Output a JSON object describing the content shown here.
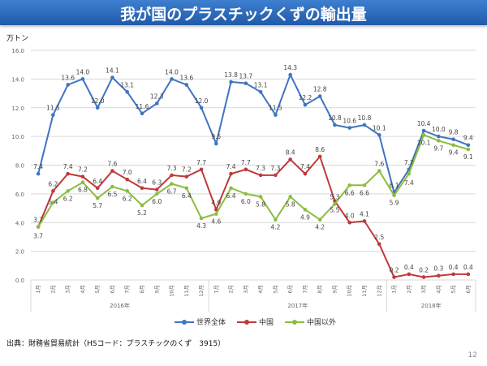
{
  "header": {
    "title": "我が国のプラスチックくずの輸出量"
  },
  "unit_label": "万トン",
  "source": "出典：財務省貿易統計（HSコード：プラスチックのくず　3915）",
  "page_number": "12",
  "chart_data": {
    "type": "line",
    "title": "我が国のプラスチックくずの輸出量",
    "ylabel": "万トン",
    "xlabel": "",
    "ylim": [
      0,
      16
    ],
    "yticks": [
      "0.0",
      "2.0",
      "4.0",
      "6.0",
      "8.0",
      "10.0",
      "12.0",
      "14.0",
      "16.0"
    ],
    "grid": true,
    "legend_position": "bottom",
    "categories": [
      "1月",
      "2月",
      "3月",
      "4月",
      "5月",
      "6月",
      "7月",
      "8月",
      "9月",
      "10月",
      "11月",
      "12月",
      "1月",
      "2月",
      "3月",
      "4月",
      "5月",
      "6月",
      "7月",
      "8月",
      "9月",
      "10月",
      "11月",
      "12月",
      "1月",
      "2月",
      "3月",
      "4月",
      "5月",
      "6月"
    ],
    "year_groups": [
      {
        "label": "2016年",
        "count": 12
      },
      {
        "label": "2017年",
        "count": 12
      },
      {
        "label": "2018年",
        "count": 6
      }
    ],
    "series": [
      {
        "name": "世界全体",
        "color": "#3f74c0",
        "values": [
          7.4,
          11.5,
          13.6,
          14.0,
          12.0,
          14.1,
          13.1,
          11.6,
          12.3,
          14.0,
          13.6,
          12.0,
          9.5,
          13.8,
          13.7,
          13.1,
          11.5,
          14.3,
          12.2,
          12.8,
          10.8,
          10.6,
          10.8,
          10.1,
          6.1,
          7.7,
          10.4,
          10.0,
          9.8,
          9.4
        ]
      },
      {
        "name": "中国",
        "color": "#c0393b",
        "values": [
          3.7,
          6.2,
          7.4,
          7.2,
          6.4,
          7.6,
          7.0,
          6.4,
          6.3,
          7.3,
          7.2,
          7.7,
          4.9,
          7.4,
          7.7,
          7.3,
          7.3,
          8.4,
          7.4,
          8.6,
          5.5,
          4.0,
          4.1,
          2.5,
          0.2,
          0.4,
          0.2,
          0.3,
          0.4,
          0.4
        ]
      },
      {
        "name": "中国以外",
        "color": "#8cbd3f",
        "values": [
          3.7,
          5.4,
          6.2,
          6.8,
          5.7,
          6.5,
          6.2,
          5.2,
          6.0,
          6.7,
          6.4,
          4.3,
          4.6,
          6.4,
          6.0,
          5.8,
          4.2,
          5.8,
          4.9,
          4.2,
          5.3,
          6.6,
          6.6,
          7.6,
          5.9,
          7.4,
          10.1,
          9.7,
          9.4,
          9.1
        ]
      }
    ]
  }
}
